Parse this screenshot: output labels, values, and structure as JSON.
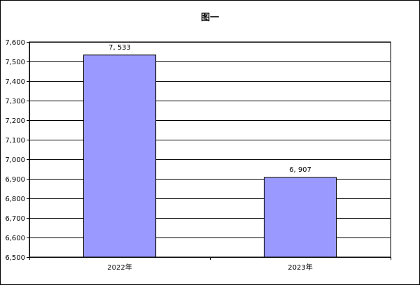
{
  "title": "图一",
  "chart_data": {
    "type": "bar",
    "title": "图一",
    "categories": [
      "2022年",
      "2023年"
    ],
    "values": [
      7533,
      6907
    ],
    "value_labels": [
      "7, 533",
      "6, 907"
    ],
    "xlabel": "",
    "ylabel": "",
    "ylim": [
      6500,
      7600
    ],
    "yticks": [
      6500,
      6600,
      6700,
      6800,
      6900,
      7000,
      7100,
      7200,
      7300,
      7400,
      7500,
      7600
    ],
    "ytick_labels": [
      "6,500",
      "6,600",
      "6,700",
      "6,800",
      "6,900",
      "7,000",
      "7,100",
      "7,200",
      "7,300",
      "7,400",
      "7,500",
      "7,600"
    ],
    "grid": true,
    "legend": "none",
    "bar_color": "#9999ff",
    "bar_edge_color": "#000000"
  }
}
